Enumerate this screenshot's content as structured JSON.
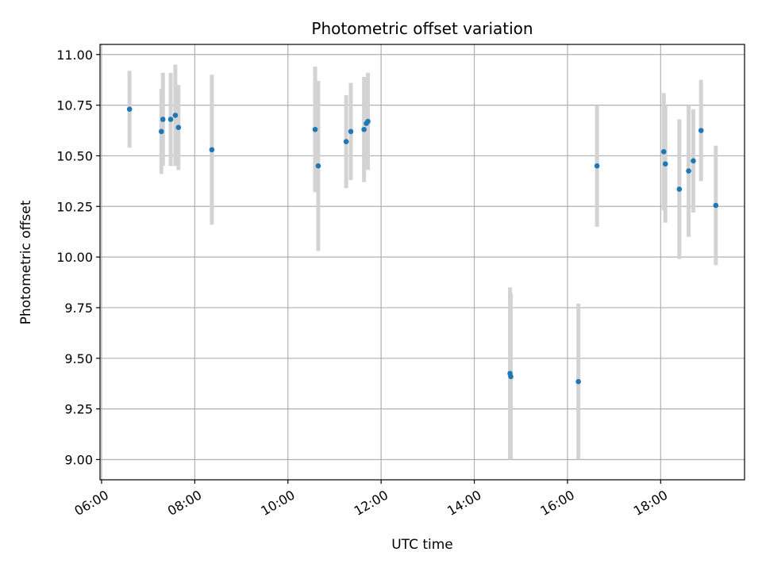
{
  "chart_data": {
    "type": "scatter",
    "title": "Photometric offset variation",
    "xlabel": "UTC time",
    "ylabel": "Photometric offset",
    "xlim": [
      "05:58",
      "19:48"
    ],
    "ylim": [
      8.9,
      11.05
    ],
    "x_ticks": [
      "06:00",
      "08:00",
      "10:00",
      "12:00",
      "14:00",
      "16:00",
      "18:00"
    ],
    "y_ticks": [
      "9.00",
      "9.25",
      "9.50",
      "9.75",
      "10.00",
      "10.25",
      "10.50",
      "10.75",
      "11.00"
    ],
    "grid": true,
    "marker_color": "#1f77b4",
    "errorbar_color": "#d3d3d3",
    "points": [
      {
        "x": "06:36",
        "y": 10.73,
        "err": 0.19
      },
      {
        "x": "07:17",
        "y": 10.62,
        "err": 0.21
      },
      {
        "x": "07:19",
        "y": 10.68,
        "err": 0.23
      },
      {
        "x": "07:29",
        "y": 10.68,
        "err": 0.23
      },
      {
        "x": "07:35",
        "y": 10.7,
        "err": 0.25
      },
      {
        "x": "07:39",
        "y": 10.64,
        "err": 0.21
      },
      {
        "x": "08:22",
        "y": 10.53,
        "err": 0.37
      },
      {
        "x": "10:35",
        "y": 10.63,
        "err": 0.31
      },
      {
        "x": "10:39",
        "y": 10.45,
        "err": 0.42
      },
      {
        "x": "11:15",
        "y": 10.57,
        "err": 0.23
      },
      {
        "x": "11:21",
        "y": 10.62,
        "err": 0.24
      },
      {
        "x": "11:38",
        "y": 10.63,
        "err": 0.26
      },
      {
        "x": "11:41",
        "y": 10.66,
        "err": 0.22
      },
      {
        "x": "11:43",
        "y": 10.67,
        "err": 0.24
      },
      {
        "x": "14:46",
        "y": 9.425,
        "err": 0.425
      },
      {
        "x": "14:47",
        "y": 9.41,
        "err": 0.41
      },
      {
        "x": "16:14",
        "y": 9.385,
        "err": 0.385
      },
      {
        "x": "16:38",
        "y": 10.45,
        "err": 0.3
      },
      {
        "x": "18:04",
        "y": 10.52,
        "err": 0.29
      },
      {
        "x": "18:06",
        "y": 10.46,
        "err": 0.29
      },
      {
        "x": "18:24",
        "y": 10.335,
        "err": 0.345
      },
      {
        "x": "18:36",
        "y": 10.425,
        "err": 0.325
      },
      {
        "x": "18:42",
        "y": 10.475,
        "err": 0.255
      },
      {
        "x": "18:52",
        "y": 10.625,
        "err": 0.25
      },
      {
        "x": "19:11",
        "y": 10.255,
        "err": 0.295
      }
    ]
  }
}
